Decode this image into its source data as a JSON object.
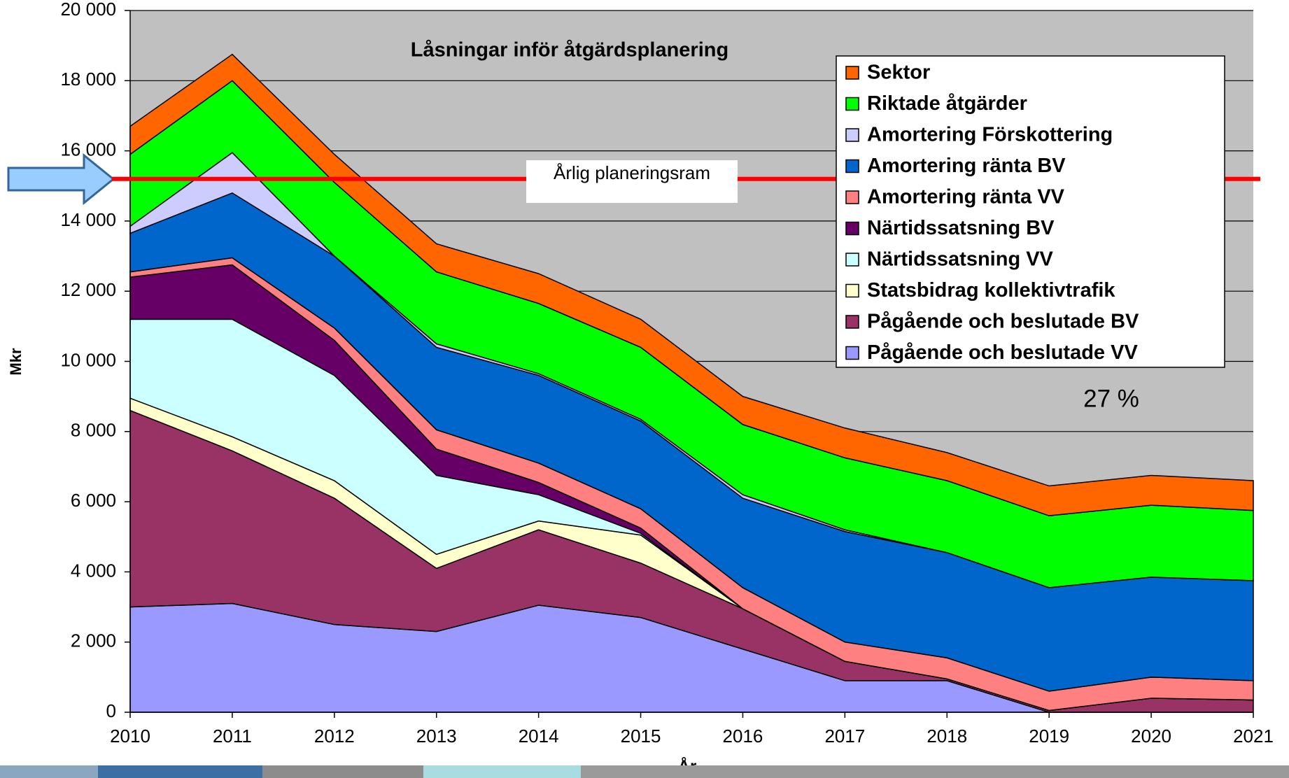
{
  "chart_data": {
    "type": "stacked-area",
    "title": "Låsningar inför åtgärdsplanering",
    "xlabel": "År",
    "ylabel": "Mkr",
    "x": [
      2010,
      2011,
      2012,
      2013,
      2014,
      2015,
      2016,
      2017,
      2018,
      2019,
      2020,
      2021
    ],
    "xlim": [
      2010,
      2021
    ],
    "xticks": [
      2010,
      2011,
      2012,
      2013,
      2014,
      2015,
      2016,
      2017,
      2018,
      2019,
      2020,
      2021
    ],
    "ylim": [
      0,
      20000
    ],
    "yticks": [
      0,
      {
        "value": 2000,
        "label": "2 000"
      },
      {
        "value": 4000,
        "label": "4 000"
      },
      {
        "value": 6000,
        "label": "6 000"
      },
      {
        "value": 8000,
        "label": "8 000"
      },
      {
        "value": 10000,
        "label": "10 000"
      },
      {
        "value": 12000,
        "label": "12 000"
      },
      {
        "value": 14000,
        "label": "14 000"
      },
      {
        "value": 16000,
        "label": "16 000"
      },
      {
        "value": 18000,
        "label": "18 000"
      },
      {
        "value": 20000,
        "label": "20 000"
      }
    ],
    "grid": true,
    "legend": "upper right",
    "series": [
      {
        "name": "Pågående och beslutade VV",
        "color": "#9999ff",
        "values": [
          3000,
          3100,
          2500,
          2300,
          3050,
          2700,
          1800,
          900,
          900,
          0,
          0,
          0
        ]
      },
      {
        "name": "Pågående och beslutade BV",
        "color": "#993366",
        "values": [
          5600,
          4350,
          3600,
          1800,
          2150,
          1550,
          1150,
          550,
          50,
          50,
          400,
          350
        ]
      },
      {
        "name": "Statsbidrag kollektivtrafik",
        "color": "#ffffcc",
        "values": [
          350,
          400,
          500,
          400,
          250,
          800,
          0,
          0,
          0,
          0,
          0,
          0
        ]
      },
      {
        "name": "Närtidssatsning VV",
        "color": "#ccffff",
        "values": [
          2250,
          3350,
          3000,
          2250,
          750,
          50,
          0,
          0,
          0,
          0,
          0,
          0
        ]
      },
      {
        "name": "Närtidssatsning BV",
        "color": "#660066",
        "values": [
          1200,
          1550,
          1000,
          750,
          350,
          150,
          0,
          0,
          0,
          0,
          0,
          0
        ]
      },
      {
        "name": "Amortering ränta VV",
        "color": "#ff8080",
        "values": [
          150,
          200,
          350,
          550,
          550,
          550,
          600,
          550,
          600,
          550,
          600,
          550
        ]
      },
      {
        "name": "Amortering ränta BV",
        "color": "#0066cc",
        "values": [
          1100,
          1850,
          2050,
          2350,
          2500,
          2500,
          2550,
          3150,
          3000,
          2950,
          2850,
          2850
        ]
      },
      {
        "name": "Amortering Förskottering",
        "color": "#ccccff",
        "values": [
          200,
          1150,
          0,
          100,
          50,
          50,
          100,
          50,
          0,
          0,
          0,
          0
        ]
      },
      {
        "name": "Riktade åtgärder",
        "color": "#00ff00",
        "values": [
          2050,
          2050,
          2100,
          2050,
          2000,
          2050,
          2000,
          2050,
          2050,
          2050,
          2050,
          2000
        ]
      },
      {
        "name": "Sektor",
        "color": "#ff6600",
        "values": [
          800,
          750,
          800,
          800,
          850,
          800,
          800,
          850,
          800,
          850,
          850,
          850
        ]
      }
    ],
    "reference_line": {
      "label": "Årlig planeringsram",
      "value": 15200,
      "color": "#ff0000"
    },
    "annotation": "27 %"
  }
}
